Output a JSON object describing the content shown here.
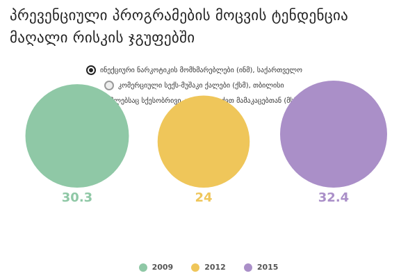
{
  "title": "პრევენციული პროგრამების მოცვის ტენდენცია მაღალი რისკის ჯგუფებში",
  "options": [
    {
      "label": "ინექციური ნარკოტიკის მომხმარებლები (ინმ), საქართველო",
      "selected": true
    },
    {
      "label": "კომერციული სექს-მუშაკი ქალები (ქსმ), თბილისი",
      "selected": false
    },
    {
      "label": "მამაკაცები, რომლებსაც სქესობრივი კონტაქტი აქვთ მამაკაცებთან (მსმ), თბილისი",
      "selected": false
    }
  ],
  "chart_data": {
    "type": "bubble",
    "title": "პრევენციული პროგრამების მოცვის ტენდენცია მაღალი რისკის ჯგუფებში",
    "categories": [
      "2009",
      "2012",
      "2015"
    ],
    "values": [
      30.3,
      24,
      32.4
    ],
    "colors": [
      "#8fc8a6",
      "#efc65a",
      "#aa8fc8"
    ],
    "legend_position": "bottom",
    "grid": false
  }
}
